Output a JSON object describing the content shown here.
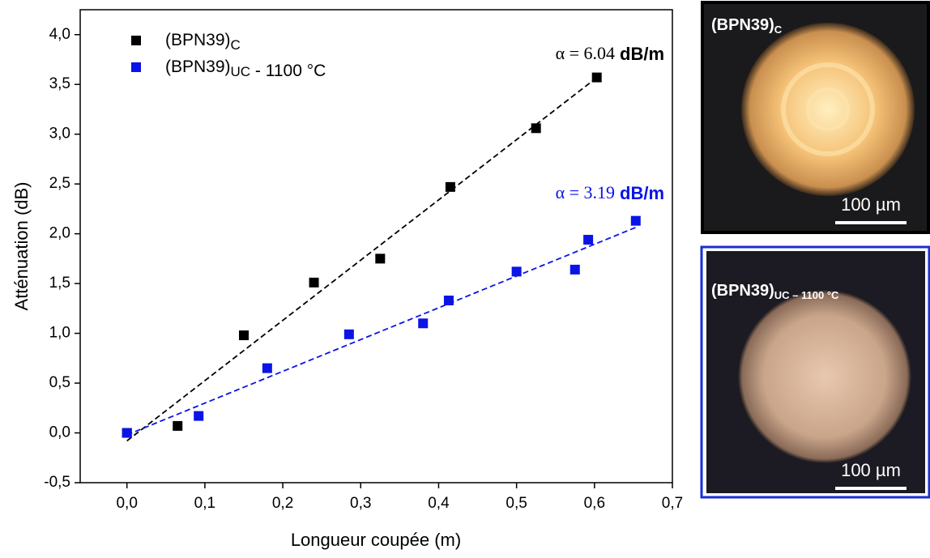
{
  "chart_data": {
    "type": "scatter",
    "xlabel": "Longueur coupée (m)",
    "ylabel": "Atténuation (dB)",
    "xlim": [
      -0.06,
      0.7
    ],
    "ylim": [
      -0.5,
      4.25
    ],
    "xticks": [
      {
        "value": 0,
        "label": "0,0"
      },
      {
        "value": 0.1,
        "label": "0,1"
      },
      {
        "value": 0.2,
        "label": "0,2"
      },
      {
        "value": 0.3,
        "label": "0,3"
      },
      {
        "value": 0.4,
        "label": "0,4"
      },
      {
        "value": 0.5,
        "label": "0,5"
      },
      {
        "value": 0.6,
        "label": "0,6"
      },
      {
        "value": 0.7,
        "label": "0,7"
      }
    ],
    "yticks": [
      {
        "value": -0.5,
        "label": "-0,5"
      },
      {
        "value": 0,
        "label": "0,0"
      },
      {
        "value": 0.5,
        "label": "0,5"
      },
      {
        "value": 1,
        "label": "1,0"
      },
      {
        "value": 1.5,
        "label": "1,5"
      },
      {
        "value": 2,
        "label": "2,0"
      },
      {
        "value": 2.5,
        "label": "2,5"
      },
      {
        "value": 3,
        "label": "3,0"
      },
      {
        "value": 3.5,
        "label": "3,5"
      },
      {
        "value": 4,
        "label": "4,0"
      }
    ],
    "series": [
      {
        "name": "(BPN39)",
        "subscript": "C",
        "color": "#000000",
        "x": [
          0,
          0.065,
          0.15,
          0.24,
          0.325,
          0.415,
          0.525,
          0.603
        ],
        "values": [
          0,
          0.07,
          0.98,
          1.51,
          1.75,
          2.47,
          3.06,
          3.57
        ]
      },
      {
        "name": "(BPN39)",
        "subscript": "UC",
        "suffix": " - 1100 °C",
        "color": "#0a14e6",
        "x": [
          0,
          0.092,
          0.18,
          0.285,
          0.38,
          0.413,
          0.5,
          0.575,
          0.592,
          0.653
        ],
        "values": [
          0,
          0.17,
          0.65,
          0.99,
          1.1,
          1.33,
          1.62,
          1.64,
          1.94,
          2.13
        ]
      }
    ],
    "fits": [
      {
        "color": "#000000",
        "x": [
          0,
          0.6
        ],
        "values": [
          -0.08,
          3.55
        ]
      },
      {
        "color": "#0a14e6",
        "x": [
          0,
          0.655
        ],
        "values": [
          -0.02,
          2.07
        ]
      }
    ],
    "annotations": [
      {
        "text": "α = 6.04",
        "unit": "dB/m",
        "color": "#000000"
      },
      {
        "text": "α = 3.19",
        "unit": "dB/m",
        "color": "#0a14e6"
      }
    ]
  },
  "images": [
    {
      "label": "(BPN39)",
      "subscript": "C",
      "scale": "100 µm"
    },
    {
      "label": "(BPN39)",
      "subscript": "UC – 1100 °C",
      "scale": "100 µm"
    }
  ]
}
